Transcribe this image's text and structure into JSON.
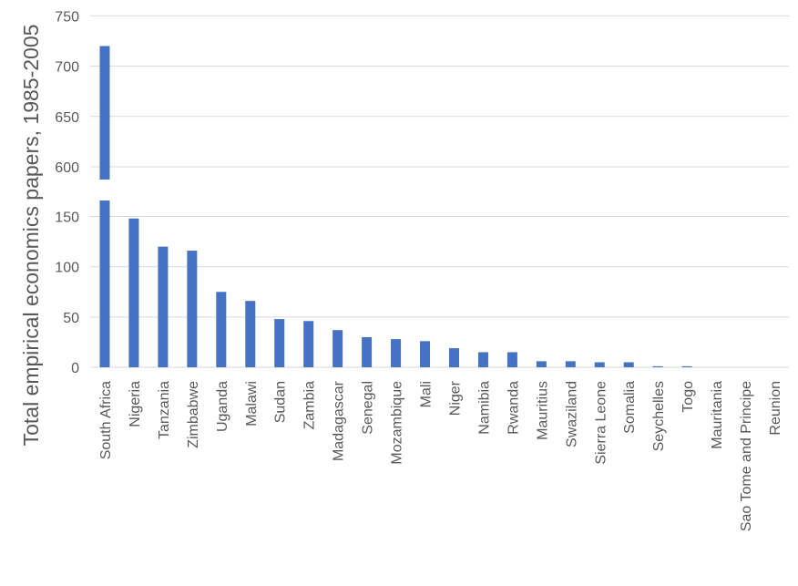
{
  "chart_data": {
    "type": "bar",
    "ylabel": "Total empirical economics papers, 1985-2005",
    "xlabel": "",
    "broken_axis": {
      "lower_range": [
        0,
        165
      ],
      "upper_range": [
        587,
        750
      ],
      "lower_ticks": [
        "0",
        "50",
        "100",
        "150"
      ],
      "upper_ticks": [
        "600",
        "650",
        "700",
        "750"
      ]
    },
    "categories": [
      "South Africa",
      "Nigeria",
      "Tanzania",
      "Zimbabwe",
      "Uganda",
      "Malawi",
      "Sudan",
      "Zambia",
      "Madagascar",
      "Senegal",
      "Mozambique",
      "Mali",
      "Niger",
      "Namibia",
      "Rwanda",
      "Mauritius",
      "Swaziland",
      "Sierra Leone",
      "Somalia",
      "Seychelles",
      "Togo",
      "Mauritania",
      "Sao Tome and Principe",
      "Reunion"
    ],
    "values": [
      720,
      148,
      120,
      116,
      75,
      66,
      48,
      46,
      37,
      30,
      28,
      26,
      19,
      15,
      15,
      6,
      6,
      5,
      5,
      1,
      1,
      0,
      0,
      0
    ],
    "grid": true,
    "legend": "none",
    "colors": {
      "bar": "#4472c4",
      "grid": "#d9d9d9",
      "text": "#595959"
    }
  }
}
